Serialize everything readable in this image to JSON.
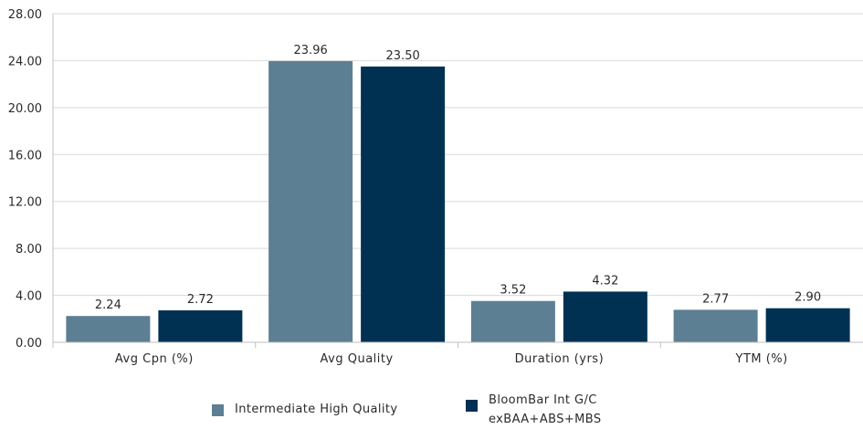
{
  "chart_data": {
    "type": "bar",
    "categories": [
      "Avg Cpn (%)",
      "Avg Quality",
      "Duration (yrs)",
      "YTM (%)"
    ],
    "series": [
      {
        "name": "Intermediate High Quality",
        "color": "#5d7f93",
        "values": [
          2.24,
          23.96,
          3.52,
          2.77
        ],
        "labels": [
          "2.24",
          "23.96",
          "3.52",
          "2.77"
        ]
      },
      {
        "name": "BloomBar Int G/C exBAA+ABS+MBS",
        "color": "#003153",
        "values": [
          2.72,
          23.5,
          4.32,
          2.9
        ],
        "labels": [
          "2.72",
          "23.50",
          "4.32",
          "2.90"
        ]
      }
    ],
    "ylim": [
      0,
      28
    ],
    "yticks": [
      "0.00",
      "4.00",
      "8.00",
      "12.00",
      "16.00",
      "20.00",
      "24.00",
      "28.00"
    ],
    "ytick_values": [
      0,
      4,
      8,
      12,
      16,
      20,
      24,
      28
    ],
    "grid": true,
    "legend_position": "bottom"
  },
  "legend": {
    "item1": "Intermediate High Quality",
    "item2": "BloomBar Int G/C exBAA+ABS+MBS"
  }
}
